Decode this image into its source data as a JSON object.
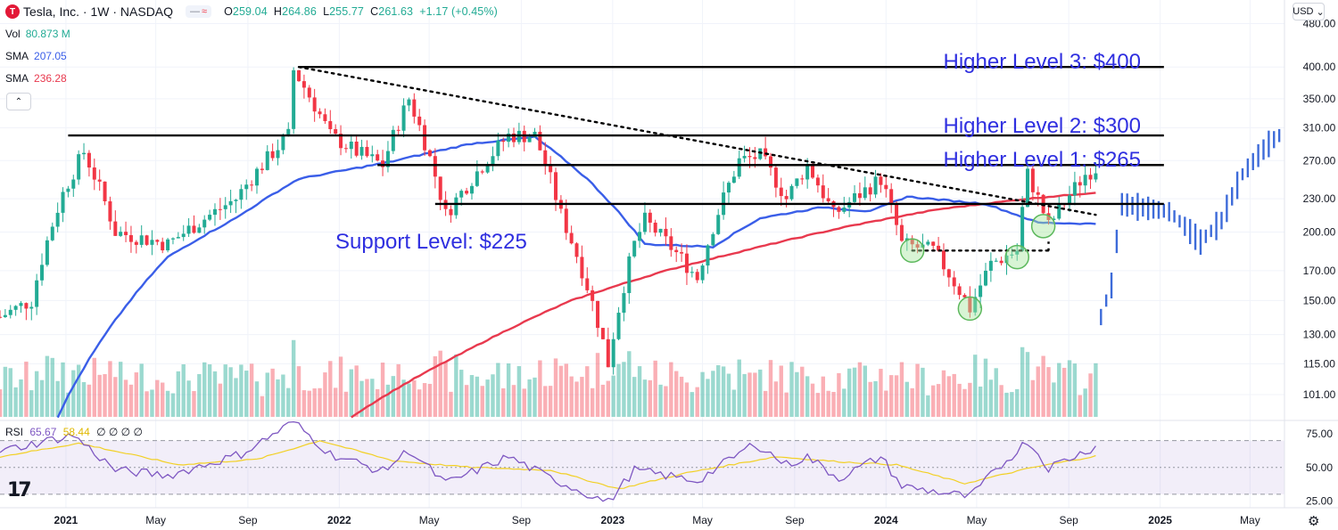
{
  "header": {
    "logo_letter": "T",
    "symbol": "Tesla, Inc. · 1W · NASDAQ",
    "pill_dash": "—",
    "pill_wave": "≈",
    "open_label": "O",
    "open": "259.04",
    "high_label": "H",
    "high": "264.86",
    "low_label": "L",
    "low": "255.77",
    "close_label": "C",
    "close": "261.63",
    "change": "+1.17 (+0.45%)"
  },
  "indicators": {
    "vol_label": "Vol",
    "vol_value": "80.873 M",
    "sma1_label": "SMA",
    "sma1_value": "207.05",
    "sma2_label": "SMA",
    "sma2_value": "236.28",
    "collapse_glyph": "⌃"
  },
  "currency": {
    "label": "USD",
    "chevron": "⌄"
  },
  "rsi": {
    "label": "RSI",
    "value": "65.67",
    "ma": "58.44",
    "extras": "∅ ∅ ∅ ∅"
  },
  "brand": {
    "tv_logo": "17"
  },
  "settings_glyph": "⚙",
  "colors": {
    "up": "#22ab94",
    "down": "#f23645",
    "sma_short": "#3a5ee8",
    "sma_long": "#e8394e",
    "annotation": "#2f2fe0",
    "rsi_line": "#7e57c2",
    "rsi_ma": "#f2d024"
  },
  "chart_data": {
    "type": "candlestick",
    "title": "",
    "scale": "log",
    "ylim": [
      92,
      530
    ],
    "xlim": [
      "2020-10-05",
      "2025-06-16"
    ],
    "x_ticks": [
      {
        "date": "2021-01-01",
        "label": "2021"
      },
      {
        "date": "2021-05-01",
        "label": "May"
      },
      {
        "date": "2021-09-01",
        "label": "Sep"
      },
      {
        "date": "2022-01-01",
        "label": "2022"
      },
      {
        "date": "2022-05-01",
        "label": "May"
      },
      {
        "date": "2022-09-01",
        "label": "Sep"
      },
      {
        "date": "2023-01-01",
        "label": "2023"
      },
      {
        "date": "2023-05-01",
        "label": "May"
      },
      {
        "date": "2023-09-01",
        "label": "Sep"
      },
      {
        "date": "2024-01-01",
        "label": "2024"
      },
      {
        "date": "2024-05-01",
        "label": "May"
      },
      {
        "date": "2024-09-01",
        "label": "Sep"
      },
      {
        "date": "2025-01-01",
        "label": "2025"
      },
      {
        "date": "2025-05-01",
        "label": "May"
      }
    ],
    "y_ticks": [
      480,
      400,
      350,
      310,
      270,
      230,
      200,
      170,
      150,
      130,
      115,
      101
    ],
    "price_anchors": [
      [
        "2020-10-05",
        140
      ],
      [
        "2020-11-16",
        150
      ],
      [
        "2020-12-28",
        235
      ],
      [
        "2021-01-25",
        280
      ],
      [
        "2021-03-08",
        200
      ],
      [
        "2021-05-17",
        190
      ],
      [
        "2021-08-16",
        230
      ],
      [
        "2021-10-25",
        300
      ],
      [
        "2021-11-01",
        395
      ],
      [
        "2021-12-20",
        300
      ],
      [
        "2022-01-24",
        280
      ],
      [
        "2022-02-28",
        265
      ],
      [
        "2022-04-04",
        350
      ],
      [
        "2022-05-23",
        215
      ],
      [
        "2022-08-15",
        300
      ],
      [
        "2022-09-19",
        300
      ],
      [
        "2022-10-24",
        215
      ],
      [
        "2022-12-26",
        115
      ],
      [
        "2023-01-30",
        190
      ],
      [
        "2023-02-13",
        210
      ],
      [
        "2023-04-24",
        165
      ],
      [
        "2023-06-19",
        270
      ],
      [
        "2023-07-17",
        275
      ],
      [
        "2023-08-21",
        230
      ],
      [
        "2023-09-18",
        265
      ],
      [
        "2023-10-23",
        215
      ],
      [
        "2023-12-25",
        250
      ],
      [
        "2024-01-22",
        190
      ],
      [
        "2024-03-04",
        185
      ],
      [
        "2024-04-22",
        145
      ],
      [
        "2024-05-20",
        175
      ],
      [
        "2024-06-24",
        185
      ],
      [
        "2024-07-08",
        255
      ],
      [
        "2024-08-05",
        205
      ],
      [
        "2024-09-23",
        255
      ],
      [
        "2024-10-07",
        261.63
      ]
    ],
    "sma_short_anchors": [
      [
        "2020-12-21",
        92
      ],
      [
        "2021-05-17",
        180
      ],
      [
        "2021-08-16",
        212
      ],
      [
        "2021-11-08",
        250
      ],
      [
        "2022-03-07",
        268
      ],
      [
        "2022-06-27",
        290
      ],
      [
        "2022-09-19",
        298
      ],
      [
        "2022-11-28",
        250
      ],
      [
        "2023-02-13",
        190
      ],
      [
        "2023-05-15",
        188
      ],
      [
        "2023-07-17",
        212
      ],
      [
        "2023-10-09",
        222
      ],
      [
        "2023-12-11",
        218
      ],
      [
        "2024-01-29",
        232
      ],
      [
        "2024-05-13",
        225
      ],
      [
        "2024-07-22",
        208
      ],
      [
        "2024-10-07",
        207
      ]
    ],
    "sma_long_anchors": [
      [
        "2022-01-17",
        92
      ],
      [
        "2022-06-13",
        120
      ],
      [
        "2022-11-07",
        150
      ],
      [
        "2023-03-13",
        170
      ],
      [
        "2023-07-17",
        188
      ],
      [
        "2023-11-13",
        205
      ],
      [
        "2024-03-11",
        220
      ],
      [
        "2024-07-08",
        230
      ],
      [
        "2024-10-07",
        236
      ]
    ],
    "projection_anchors": [
      [
        "2024-10-14",
        140
      ],
      [
        "2024-10-28",
        160
      ],
      [
        "2024-11-11",
        225
      ],
      [
        "2025-01-13",
        218
      ],
      [
        "2025-02-24",
        192
      ],
      [
        "2025-03-24",
        210
      ],
      [
        "2025-04-21",
        255
      ],
      [
        "2025-05-26",
        290
      ],
      [
        "2025-06-09",
        300
      ]
    ],
    "horizontal_levels": [
      {
        "label": "Higher Level 3: $400",
        "price": 400,
        "from": "2021-11-08",
        "to": "2025-01-06"
      },
      {
        "label": "Higher Level 2: $300",
        "price": 300,
        "from": "2021-01-04",
        "to": "2025-01-06"
      },
      {
        "label": "Higher Level 1: $265",
        "price": 265,
        "from": "2022-02-21",
        "to": "2025-01-06"
      },
      {
        "label": "Support Level: $225",
        "price": 225,
        "from": "2022-05-09",
        "to": "2025-01-06"
      }
    ],
    "trend_line": {
      "style": "dotted",
      "from": [
        "2021-11-08",
        400
      ],
      "to": [
        "2024-10-07",
        215
      ]
    },
    "range_box": {
      "style": "dotted",
      "price": 185,
      "from": "2024-02-05",
      "to": "2024-08-05"
    },
    "circled_points": [
      [
        "2024-02-05",
        185
      ],
      [
        "2024-04-22",
        145
      ],
      [
        "2024-06-24",
        180
      ],
      [
        "2024-07-29",
        205
      ]
    ],
    "rsi": {
      "ylim": [
        20,
        85
      ],
      "ticks": [
        75,
        50,
        25
      ],
      "band": [
        30,
        70
      ],
      "anchors": [
        [
          "2020-10-05",
          62
        ],
        [
          "2020-12-07",
          70
        ],
        [
          "2021-01-11",
          74
        ],
        [
          "2021-03-08",
          48
        ],
        [
          "2021-05-17",
          44
        ],
        [
          "2021-08-23",
          60
        ],
        [
          "2021-11-01",
          84
        ],
        [
          "2021-12-20",
          60
        ],
        [
          "2022-02-28",
          47
        ],
        [
          "2022-04-04",
          63
        ],
        [
          "2022-05-23",
          38
        ],
        [
          "2022-08-15",
          58
        ],
        [
          "2022-10-10",
          42
        ],
        [
          "2022-12-26",
          24
        ],
        [
          "2023-01-30",
          48
        ],
        [
          "2023-04-24",
          40
        ],
        [
          "2023-07-10",
          68
        ],
        [
          "2023-08-21",
          52
        ],
        [
          "2023-09-18",
          58
        ],
        [
          "2023-10-30",
          42
        ],
        [
          "2023-12-25",
          58
        ],
        [
          "2024-01-22",
          36
        ],
        [
          "2024-04-22",
          28
        ],
        [
          "2024-05-20",
          44
        ],
        [
          "2024-07-08",
          70
        ],
        [
          "2024-08-05",
          50
        ],
        [
          "2024-09-23",
          62
        ],
        [
          "2024-10-07",
          65.67
        ]
      ],
      "ma_anchors": [
        [
          "2020-10-05",
          58
        ],
        [
          "2021-01-18",
          68
        ],
        [
          "2021-05-31",
          52
        ],
        [
          "2021-09-13",
          56
        ],
        [
          "2021-12-06",
          70
        ],
        [
          "2022-03-14",
          55
        ],
        [
          "2022-06-27",
          50
        ],
        [
          "2022-10-10",
          48
        ],
        [
          "2023-01-09",
          34
        ],
        [
          "2023-04-10",
          46
        ],
        [
          "2023-08-07",
          58
        ],
        [
          "2023-11-06",
          54
        ],
        [
          "2024-01-15",
          52
        ],
        [
          "2024-04-15",
          38
        ],
        [
          "2024-07-15",
          50
        ],
        [
          "2024-10-07",
          58.44
        ]
      ]
    },
    "volume": {
      "ylim": [
        0,
        200
      ],
      "unit": "M"
    }
  }
}
